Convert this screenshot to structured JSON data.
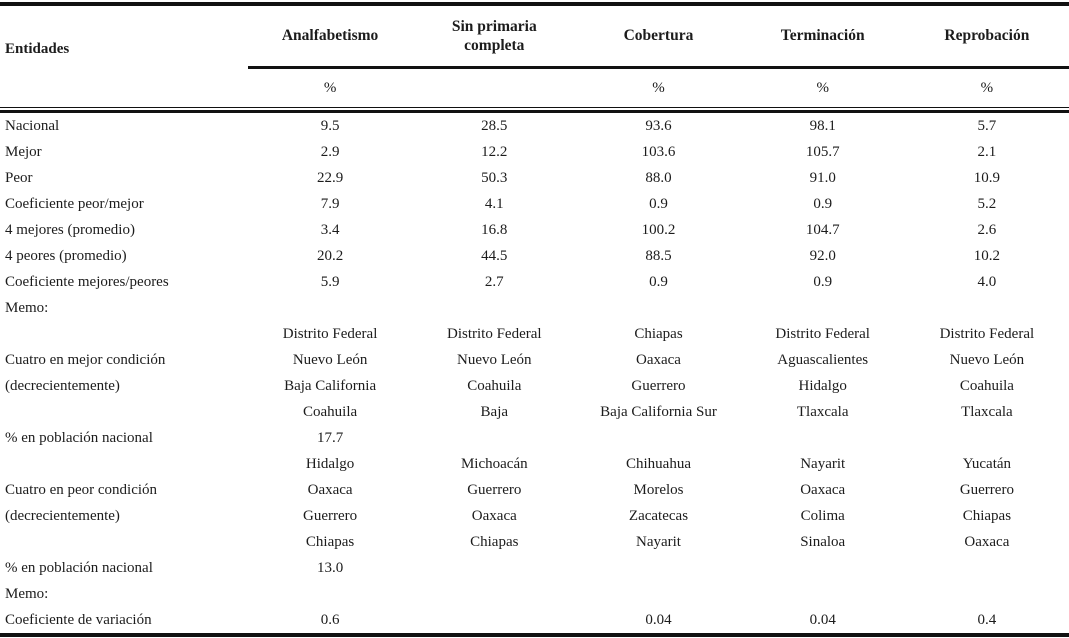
{
  "appearance": {
    "text_color": "#1c1c1c",
    "rule_color": "#111111",
    "background_color": "#ffffff"
  },
  "table": {
    "row_header": "Entidades",
    "columns": [
      "Analfabetismo",
      "Sin primaria completa",
      "Cobertura",
      "Terminación",
      "Reprobación"
    ],
    "units": [
      "%",
      "",
      "%",
      "%",
      "%"
    ],
    "rows": [
      {
        "label": "Nacional",
        "values": [
          "9.5",
          "28.5",
          "93.6",
          "98.1",
          "5.7"
        ]
      },
      {
        "label": "Mejor",
        "values": [
          "2.9",
          "12.2",
          "103.6",
          "105.7",
          "2.1"
        ]
      },
      {
        "label": "Peor",
        "values": [
          "22.9",
          "50.3",
          "88.0",
          "91.0",
          "10.9"
        ]
      },
      {
        "label": "Coeficiente peor/mejor",
        "values": [
          "7.9",
          "4.1",
          "0.9",
          "0.9",
          "5.2"
        ]
      },
      {
        "label": "4 mejores (promedio)",
        "values": [
          "3.4",
          "16.8",
          "100.2",
          "104.7",
          "2.6"
        ]
      },
      {
        "label": "4 peores (promedio)",
        "values": [
          "20.2",
          "44.5",
          "88.5",
          "92.0",
          "10.2"
        ]
      },
      {
        "label": "Coeficiente mejores/peores",
        "values": [
          "5.9",
          "2.7",
          "0.9",
          "0.9",
          "4.0"
        ]
      },
      {
        "label": "Memo:",
        "values": [
          "",
          "",
          "",
          "",
          ""
        ]
      },
      {
        "label": "",
        "values": [
          "Distrito Federal",
          "Distrito Federal",
          "Chiapas",
          "Distrito Federal",
          "Distrito Federal"
        ]
      },
      {
        "label": "Cuatro en mejor condición",
        "values": [
          "Nuevo León",
          "Nuevo León",
          "Oaxaca",
          "Aguascalientes",
          "Nuevo León"
        ]
      },
      {
        "label": "(decrecientemente)",
        "values": [
          "Baja California",
          "Coahuila",
          "Guerrero",
          "Hidalgo",
          "Coahuila"
        ]
      },
      {
        "label": "",
        "values": [
          "Coahuila",
          "Baja",
          "Baja California Sur",
          "Tlaxcala",
          "Tlaxcala"
        ]
      },
      {
        "label": "% en población nacional",
        "values": [
          "17.7",
          "",
          "",
          "",
          ""
        ]
      },
      {
        "label": "",
        "values": [
          "Hidalgo",
          "Michoacán",
          "Chihuahua",
          "Nayarit",
          "Yucatán"
        ]
      },
      {
        "label": "Cuatro en peor condición",
        "values": [
          "Oaxaca",
          "Guerrero",
          "Morelos",
          "Oaxaca",
          "Guerrero"
        ]
      },
      {
        "label": "(decrecientemente)",
        "values": [
          "Guerrero",
          "Oaxaca",
          "Zacatecas",
          "Colima",
          "Chiapas"
        ]
      },
      {
        "label": "",
        "values": [
          "Chiapas",
          "Chiapas",
          "Nayarit",
          "Sinaloa",
          "Oaxaca"
        ]
      },
      {
        "label": "% en población nacional",
        "values": [
          "13.0",
          "",
          "",
          "",
          ""
        ]
      },
      {
        "label": "Memo:",
        "values": [
          "",
          "",
          "",
          "",
          ""
        ]
      },
      {
        "label": "Coeficiente de variación",
        "values": [
          "0.6",
          "",
          "0.04",
          "0.04",
          "0.4"
        ]
      }
    ]
  }
}
